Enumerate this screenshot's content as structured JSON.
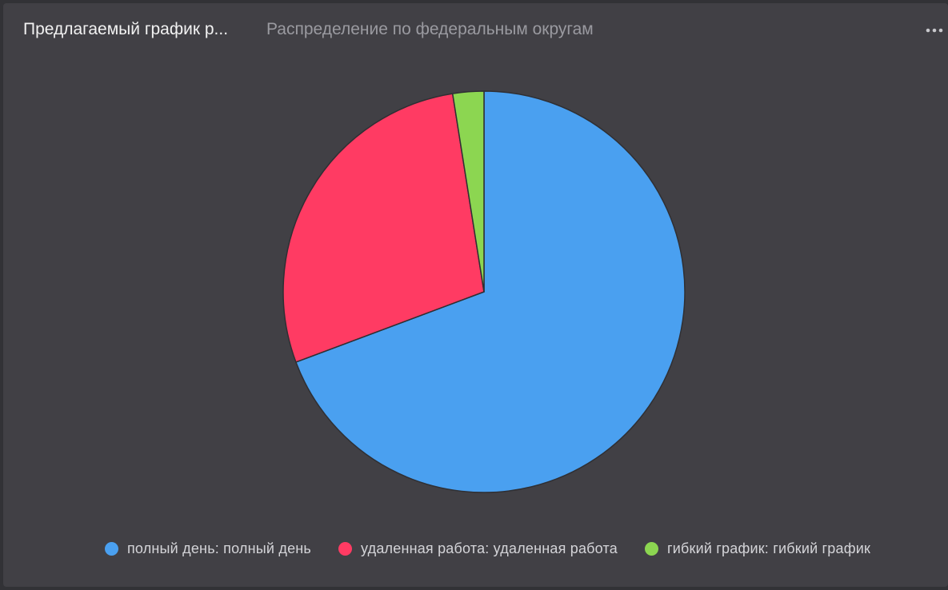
{
  "header": {
    "tabs": [
      {
        "label": "Предлагаемый график р...",
        "active": true
      },
      {
        "label": "Распределение по федеральным округам",
        "active": false
      }
    ],
    "menu_icon": "more-horizontal-icon"
  },
  "colors": {
    "background": "#414045",
    "slice_border": "#2f2f33",
    "full_day": "#4aa0f0",
    "remote": "#ff3b63",
    "flexible": "#8cd651"
  },
  "chart_data": {
    "type": "pie",
    "title": "",
    "slices": [
      {
        "label": "полный день: полный день",
        "value": 69.3,
        "color": "#4aa0f0"
      },
      {
        "label": "удаленная работа: удаленная работа",
        "value": 28.2,
        "color": "#ff3b63"
      },
      {
        "label": "гибкий график: гибкий график",
        "value": 2.5,
        "color": "#8cd651"
      }
    ],
    "start_angle_deg": 0,
    "direction": "clockwise",
    "legend_position": "bottom"
  }
}
